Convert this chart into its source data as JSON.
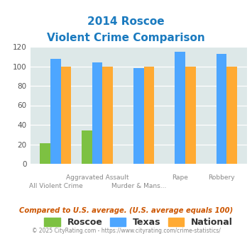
{
  "title_line1": "2014 Roscoe",
  "title_line2": "Violent Crime Comparison",
  "categories": [
    "All Violent Crime",
    "Aggravated Assault",
    "Murder & Mans...",
    "Rape",
    "Robbery"
  ],
  "roscoe": [
    21,
    34,
    0,
    0,
    0
  ],
  "texas": [
    108,
    104,
    98,
    115,
    113
  ],
  "national": [
    100,
    100,
    100,
    100,
    100
  ],
  "roscoe_color": "#7dc142",
  "texas_color": "#4da6ff",
  "national_color": "#ffaa33",
  "bg_color": "#dde8e8",
  "title_color": "#1a7abf",
  "ylim": [
    0,
    120
  ],
  "yticks": [
    0,
    20,
    40,
    60,
    80,
    100,
    120
  ],
  "top_labels": [
    "",
    "Aggravated Assault",
    "",
    "Rape",
    "Robbery"
  ],
  "bottom_labels": [
    "All Violent Crime",
    "",
    "Murder & Mans...",
    "",
    ""
  ],
  "footnote": "Compared to U.S. average. (U.S. average equals 100)",
  "copyright": "© 2025 CityRating.com - https://www.cityrating.com/crime-statistics/",
  "legend_labels": [
    "Roscoe",
    "Texas",
    "National"
  ],
  "bar_width": 0.25
}
